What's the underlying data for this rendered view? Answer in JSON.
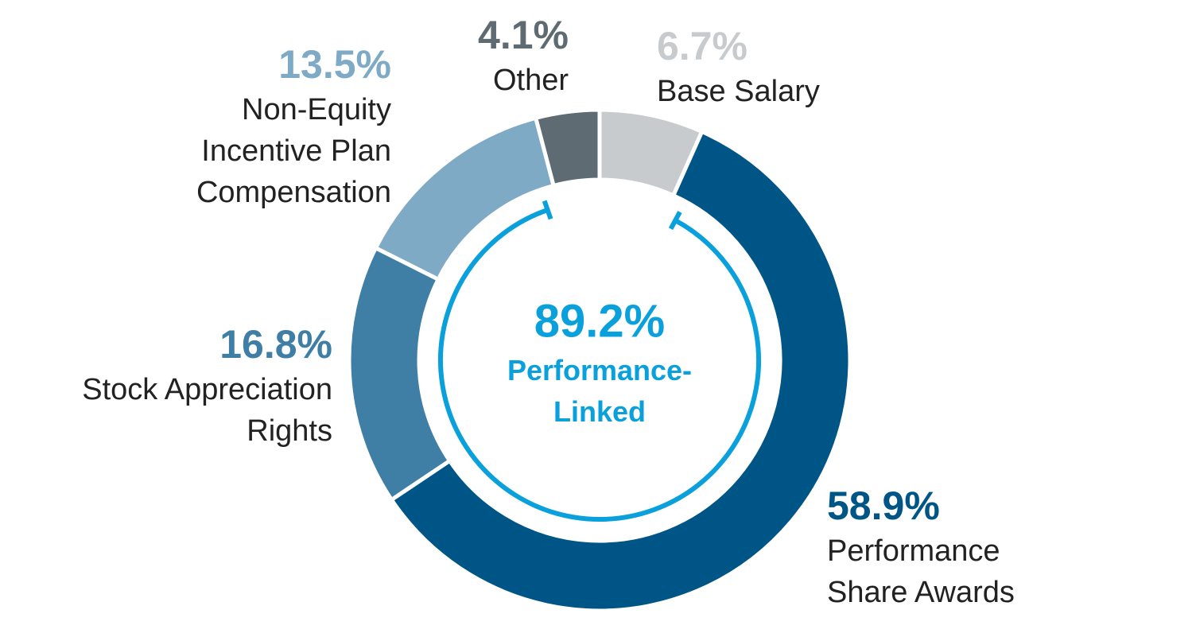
{
  "chart_data": {
    "type": "donut",
    "categories": [
      "Base Salary",
      "Performance Share Awards",
      "Stock Appreciation Rights",
      "Non-Equity Incentive Plan Compensation",
      "Other"
    ],
    "values": [
      6.7,
      58.9,
      16.8,
      13.5,
      4.1
    ],
    "value_labels": [
      "6.7%",
      "58.9%",
      "16.8%",
      "13.5%",
      "4.1%"
    ],
    "colors": [
      "#c8cbce",
      "#005587",
      "#3f7fa6",
      "#7eaac6",
      "#5e6b73"
    ],
    "center_value": 89.2,
    "center_value_label": "89.2%",
    "center_label": "Performance-Linked",
    "center_color": "#0aa0dc"
  }
}
